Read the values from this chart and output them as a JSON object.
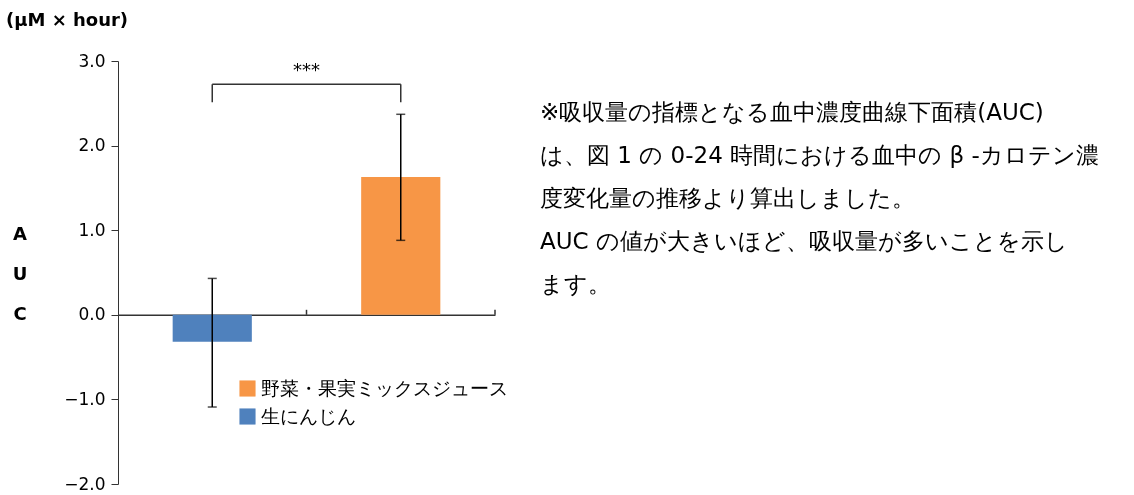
{
  "chart_data": {
    "type": "bar",
    "ylabel": "AUC",
    "categories": [
      null,
      null
    ],
    "series": [
      {
        "name": "野菜・果実ミックスジュース",
        "color": "#f79646",
        "values": [
          null,
          1.63
        ],
        "errors": [
          null,
          [
            0.88,
            2.37
          ]
        ]
      },
      {
        "name": "生にんじん",
        "color": "#4f81bd",
        "values": [
          -0.32,
          null
        ],
        "errors": [
          [
            -1.09,
            0.43
          ],
          null
        ]
      }
    ],
    "ylim": [
      -2.0,
      3.0
    ],
    "yticks": [
      {
        "value": -2,
        "label": "−2.0"
      },
      {
        "value": -1,
        "label": "−1.0"
      },
      {
        "value": 0,
        "label": "0.0"
      },
      {
        "value": 1,
        "label": "1.0"
      },
      {
        "value": 2,
        "label": "2.0"
      },
      {
        "value": 3,
        "label": "3.0"
      }
    ],
    "annotations": [
      "(μM × hour)",
      "***",
      "※吸収量の指標となる血中濃度曲線下面積(AUC)は、図 1 の 0-24 時間における血中の β -カロテン濃度変化量の推移より算出しました。",
      "AUC の値が大きいほど、吸収量が多いことを示します。"
    ],
    "legend": "bottom"
  }
}
